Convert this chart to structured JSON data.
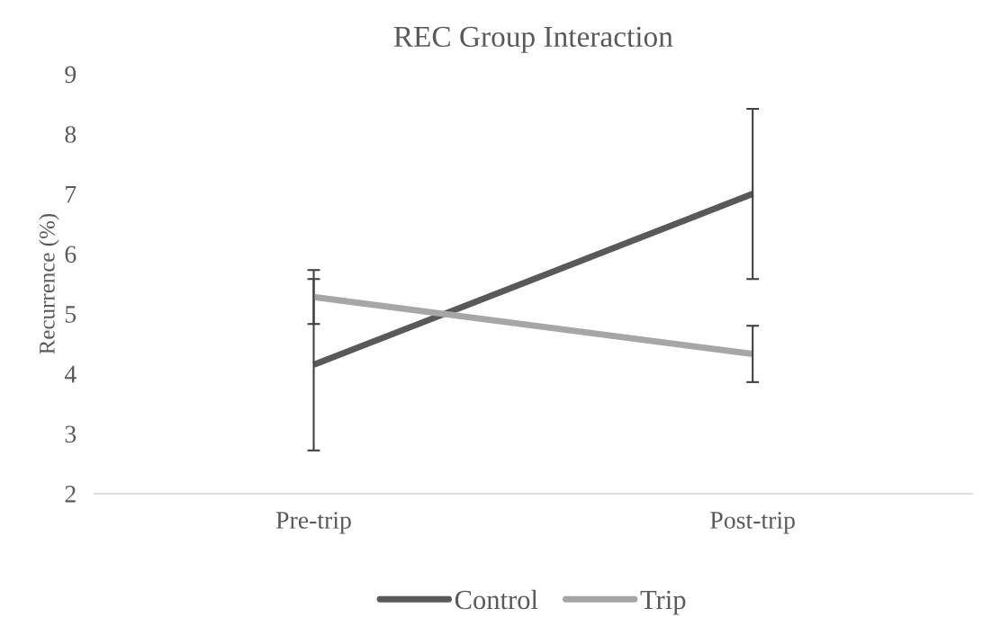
{
  "chart_data": {
    "type": "line",
    "title": "REC Group Interaction",
    "ylabel": "Recurrence (%)",
    "categories": [
      "Pre-trip",
      "Post-trip"
    ],
    "series": [
      {
        "name": "Control",
        "color": "#595959",
        "values": [
          4.15,
          7.0
        ],
        "errors": [
          1.43,
          1.42
        ]
      },
      {
        "name": "Trip",
        "color": "#a6a6a6",
        "values": [
          5.28,
          4.33
        ],
        "errors": [
          0.45,
          0.47
        ]
      }
    ],
    "ylim": [
      2,
      9
    ],
    "yticks": [
      2,
      3,
      4,
      5,
      6,
      7,
      8,
      9
    ],
    "grid": false,
    "legend": "bottom",
    "marker": "none",
    "line_style": "solid"
  }
}
